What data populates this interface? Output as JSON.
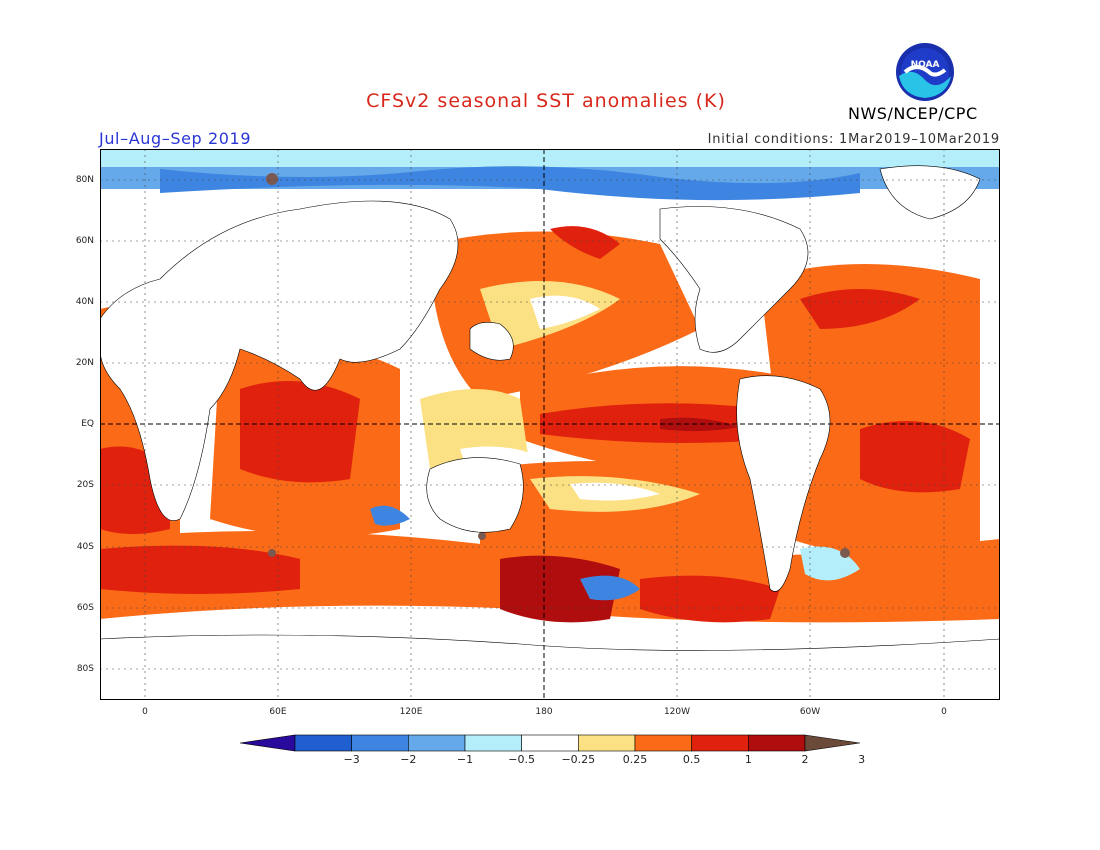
{
  "header": {
    "title": "CFSv2 seasonal SST anomalies (K)",
    "period": "Jul–Aug–Sep 2019",
    "initial_conditions": "Initial conditions: 1Mar2019–10Mar2019",
    "agency": "NWS/NCEP/CPC",
    "logo_text": "NOAA"
  },
  "map": {
    "lat_labels": [
      "80N",
      "60N",
      "40N",
      "20N",
      "EQ",
      "20S",
      "40S",
      "60S",
      "80S"
    ],
    "lon_labels": [
      "0",
      "60E",
      "120E",
      "180",
      "120W",
      "60W",
      "0"
    ]
  },
  "colorbar": {
    "labels": [
      "−3",
      "−2",
      "−1",
      "−0.5",
      "−0.25",
      "0.25",
      "0.5",
      "1",
      "2",
      "3"
    ],
    "colors": [
      "#2a0a9c",
      "#1f5fcf",
      "#3d85e0",
      "#65a9ea",
      "#b3eefa",
      "#ffffff",
      "#fce184",
      "#fb6a16",
      "#e0210e",
      "#b00d0e",
      "#6b4a3a"
    ]
  },
  "palette": {
    "land": "#ffffff",
    "warm1": "#fce184",
    "warm2": "#fb6a16",
    "warm3": "#e0210e",
    "warm4": "#b00d0e",
    "extreme": "#7a5a50",
    "cool1": "#b3eefa",
    "cool2": "#65a9ea",
    "cool3": "#3d85e0"
  }
}
